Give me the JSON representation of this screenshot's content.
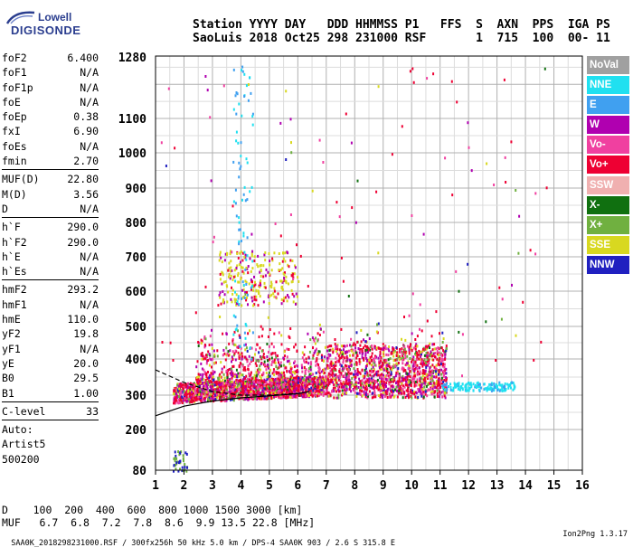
{
  "brand": {
    "line1": "Lowell",
    "line2": "DIGISONDE"
  },
  "header": {
    "line1": "Station YYYY DAY   DDD HHMMSS P1   FFS  S  AXN  PPS  IGA PS",
    "line2": "SaoLuis 2018 Oct25 298 231000 RSF       1  715  100  00- 11"
  },
  "params_top": [
    {
      "name": "foF2",
      "value": "6.400"
    },
    {
      "name": "foF1",
      "value": "N/A"
    },
    {
      "name": "foF1p",
      "value": "N/A"
    },
    {
      "name": "foE",
      "value": "N/A"
    },
    {
      "name": "foEp",
      "value": "0.38"
    },
    {
      "name": "fxI",
      "value": "6.90"
    },
    {
      "name": "foEs",
      "value": "N/A"
    },
    {
      "name": "fmin",
      "value": "2.70"
    }
  ],
  "params_mid": [
    {
      "name": "MUF(D)",
      "value": "22.80"
    },
    {
      "name": "M(D)",
      "value": "3.56"
    },
    {
      "name": "D",
      "value": "N/A"
    }
  ],
  "params_h": [
    {
      "name": "h`F",
      "value": "290.0"
    },
    {
      "name": "h`F2",
      "value": "290.0"
    },
    {
      "name": "h`E",
      "value": "N/A"
    },
    {
      "name": "h`Es",
      "value": "N/A"
    }
  ],
  "params_hm": [
    {
      "name": "hmF2",
      "value": "293.2"
    },
    {
      "name": "hmF1",
      "value": "N/A"
    },
    {
      "name": "hmE",
      "value": "110.0"
    },
    {
      "name": "yF2",
      "value": "19.8"
    },
    {
      "name": "yF1",
      "value": "N/A"
    },
    {
      "name": "yE",
      "value": "20.0"
    },
    {
      "name": "B0",
      "value": "29.5"
    },
    {
      "name": "B1",
      "value": "1.00"
    }
  ],
  "clevel": {
    "name": "C-level",
    "value": "33"
  },
  "auto": {
    "line1": "Auto:",
    "line2": "Artist5",
    "line3": "500200"
  },
  "distance_table": {
    "line1": "D    100  200  400  600  800 1000 1500 3000 [km]",
    "line2": "MUF   6.7  6.8  7.2  7.8  8.6  9.9 13.5 22.8 [MHz]"
  },
  "footer": {
    "left": "SAA0K_2018298231000.RSF / 300fx256h 50 kHz 5.0 km / DPS-4 SAA0K 903 / 2.6 S 315.8 E",
    "right": "Ion2Png 1.3.17"
  },
  "legend": [
    {
      "label": "NoVal",
      "color": "#a0a0a0"
    },
    {
      "label": "NNE",
      "color": "#20e0f0"
    },
    {
      "label": "E",
      "color": "#40a0f0"
    },
    {
      "label": "W",
      "color": "#b000b0"
    },
    {
      "label": "Vo-",
      "color": "#f040a0"
    },
    {
      "label": "Vo+",
      "color": "#ee0033"
    },
    {
      "label": "SSW",
      "color": "#f0b0b0"
    },
    {
      "label": "X-",
      "color": "#107010"
    },
    {
      "label": "X+",
      "color": "#70b040"
    },
    {
      "label": "SSE",
      "color": "#d8d820"
    },
    {
      "label": "NNW",
      "color": "#2020c0"
    }
  ],
  "chart_data": {
    "type": "scatter",
    "title": "",
    "xlabel": "",
    "ylabel": "",
    "x_ticks": [
      1,
      2,
      3,
      4,
      5,
      6,
      7,
      8,
      9,
      10,
      11,
      12,
      13,
      14,
      15,
      16
    ],
    "y_ticks": [
      80,
      200,
      300,
      400,
      500,
      600,
      700,
      800,
      900,
      1000,
      1100,
      1280
    ],
    "xlim": [
      1,
      16
    ],
    "ylim": [
      80,
      1280
    ],
    "y_scale": "nonlinear (compressed at low heights)",
    "grid": true,
    "clusters": [
      {
        "name": "o-trace main F-layer",
        "x": [
          1.6,
          7.0
        ],
        "y": [
          260,
          360
        ],
        "dominant": "Vo+"
      },
      {
        "name": "spread F echoes",
        "x": [
          2.4,
          11.2
        ],
        "y": [
          280,
          520
        ],
        "dominant": "mixed"
      },
      {
        "name": "multi-hop echoes",
        "x": [
          3.2,
          6.0
        ],
        "y": [
          560,
          720
        ],
        "dominant": "SSE"
      },
      {
        "name": "NNE/E echoes",
        "x": [
          11.0,
          13.6
        ],
        "y": [
          315,
          340
        ],
        "dominant": "NNE"
      }
    ],
    "profile_curves": [
      {
        "name": "dashed h'F fit",
        "style": "dashed",
        "points": [
          [
            1,
            370
          ],
          [
            2,
            335
          ],
          [
            3,
            310
          ],
          [
            4,
            300
          ],
          [
            5,
            300
          ],
          [
            6,
            305
          ]
        ]
      },
      {
        "name": "solid profile",
        "style": "solid",
        "points": [
          [
            1,
            240
          ],
          [
            2,
            268
          ],
          [
            3,
            283
          ],
          [
            4,
            292
          ],
          [
            5,
            298
          ],
          [
            6,
            304
          ],
          [
            6.4,
            310
          ]
        ]
      }
    ]
  }
}
